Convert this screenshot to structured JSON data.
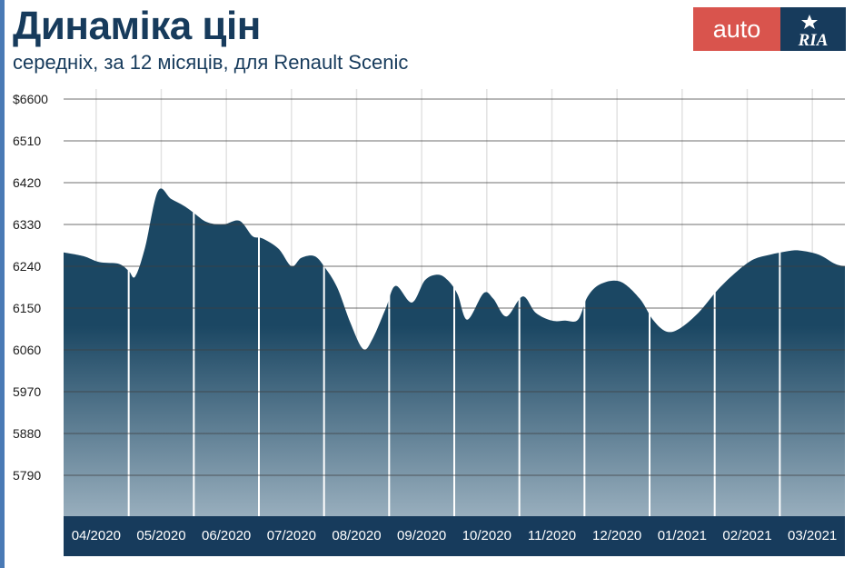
{
  "header": {
    "title": "Динаміка цін",
    "subtitle": "середніх, за 12 місяців, для Renault Scenic"
  },
  "logo": {
    "auto_text": "auto",
    "ria_text": "RIA"
  },
  "colors": {
    "navy": "#173b5c",
    "area_top": "#1b4763",
    "area_bottom": "#98aebd",
    "logo_red": "#d9544d",
    "accent_bar": "#4a7ab5"
  },
  "chart_data": {
    "type": "area",
    "title": "Динаміка цін",
    "subtitle": "середніх, за 12 місяців, для Renault Scenic",
    "categories": [
      "04/2020",
      "05/2020",
      "06/2020",
      "07/2020",
      "08/2020",
      "09/2020",
      "10/2020",
      "11/2020",
      "12/2020",
      "01/2021",
      "02/2021",
      "03/2021"
    ],
    "y_ticks": [
      "$6600",
      "6510",
      "6420",
      "6330",
      "6240",
      "6150",
      "6060",
      "5970",
      "5880",
      "5790"
    ],
    "ylim": [
      5700,
      6620
    ],
    "grid": true,
    "x": [
      0,
      0.3,
      0.55,
      0.85,
      1.0,
      1.1,
      1.25,
      1.45,
      1.65,
      1.85,
      2.0,
      2.2,
      2.45,
      2.7,
      2.9,
      3.05,
      3.3,
      3.5,
      3.65,
      3.85,
      4.0,
      4.2,
      4.4,
      4.6,
      4.75,
      4.95,
      5.1,
      5.35,
      5.55,
      5.75,
      5.9,
      6.05,
      6.2,
      6.45,
      6.6,
      6.8,
      7.05,
      7.25,
      7.5,
      7.7,
      7.9,
      8.05,
      8.25,
      8.55,
      8.85,
      9.05,
      9.25,
      9.45,
      9.75,
      10.05,
      10.35,
      10.6,
      10.85,
      11.1,
      11.3,
      11.6,
      11.85,
      12.0
    ],
    "values": [
      6270,
      6262,
      6249,
      6245,
      6230,
      6218,
      6280,
      6402,
      6385,
      6370,
      6355,
      6335,
      6330,
      6338,
      6305,
      6300,
      6278,
      6240,
      6258,
      6262,
      6240,
      6195,
      6120,
      6062,
      6085,
      6150,
      6198,
      6162,
      6210,
      6222,
      6210,
      6180,
      6125,
      6182,
      6170,
      6132,
      6175,
      6140,
      6123,
      6123,
      6125,
      6175,
      6202,
      6207,
      6170,
      6125,
      6100,
      6105,
      6140,
      6190,
      6230,
      6255,
      6265,
      6272,
      6274,
      6265,
      6245,
      6240
    ]
  }
}
